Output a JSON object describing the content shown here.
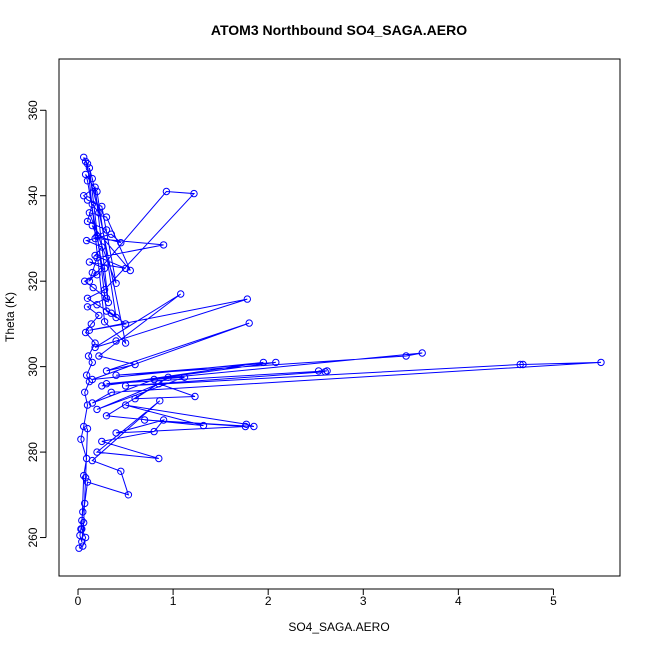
{
  "chart_data": {
    "type": "line",
    "title": "ATOM3 Northbound SO4_SAGA.AERO",
    "xlabel": "SO4_SAGA.AERO",
    "ylabel": "Theta (K)",
    "xlim": [
      -0.2,
      5.7
    ],
    "ylim": [
      251,
      372
    ],
    "x_ticks": [
      0,
      1,
      2,
      3,
      4,
      5
    ],
    "y_ticks": [
      260,
      280,
      300,
      320,
      340,
      360
    ],
    "x_tick_labels": [
      "0",
      "1",
      "2",
      "3",
      "4",
      "5"
    ],
    "y_tick_labels": [
      "260",
      "280",
      "300",
      "320",
      "340",
      "360"
    ],
    "marker": "open-circle",
    "grid": false,
    "legend": "none",
    "series_color": "#0000ff",
    "series": [
      {
        "x": [
          0.01,
          0.05,
          0.08,
          0.04,
          0.06,
          0.09,
          0.03,
          0.06,
          0.1,
          0.07,
          0.12,
          0.09,
          0.15,
          0.11,
          0.18,
          0.08,
          0.14,
          0.22,
          0.1,
          0.3,
          0.16,
          0.07,
          0.2,
          0.28,
          0.12,
          0.5,
          0.18,
          0.25,
          0.09,
          0.35,
          0.45,
          0.2,
          0.15,
          0.55,
          0.3,
          0.12,
          0.4,
          0.25,
          0.1,
          0.06,
          0.18,
          0.32,
          0.1,
          0.08,
          0.2,
          0.4,
          0.3,
          0.12,
          0.15,
          0.5,
          0.28,
          0.1,
          0.06,
          0.08,
          0.22,
          0.15,
          0.1,
          0.3,
          0.18,
          0.9,
          0.2,
          0.15,
          0.12,
          0.93,
          1.22,
          0.28,
          0.1,
          0.2,
          0.35,
          0.5,
          0.12,
          1.78,
          0.4,
          0.18,
          1.08,
          0.22,
          0.6,
          0.3,
          1.8,
          0.15,
          1.95,
          0.25,
          2.08,
          0.4,
          3.45,
          3.62,
          0.3,
          2.62,
          2.53,
          2.6,
          0.5,
          4.65,
          4.68,
          5.5,
          0.35,
          0.15,
          0.8,
          1.12,
          0.2,
          0.85,
          1.23,
          0.6,
          0.95,
          0.3,
          1.32,
          0.5,
          1.77,
          1.85,
          0.7,
          1.76,
          0.4,
          0.9,
          0.8,
          0.25,
          0.85,
          0.2,
          0.86,
          0.15,
          0.45,
          0.53,
          0.1,
          0.07,
          0.05,
          0.04,
          0.03,
          0.02,
          0.04,
          0.06,
          0.08,
          0.1
        ],
        "y": [
          257.5,
          258.0,
          260.0,
          262.0,
          274.5,
          278.5,
          283.0,
          286.0,
          291.0,
          294.0,
          296.5,
          298.0,
          301.0,
          302.5,
          305.5,
          308.0,
          310.0,
          312.0,
          314.0,
          316.0,
          318.5,
          320.0,
          321.5,
          323.0,
          324.5,
          323.0,
          326.0,
          328.0,
          329.5,
          331.0,
          329.0,
          330.5,
          333.0,
          322.5,
          335.0,
          336.0,
          319.5,
          337.5,
          339.0,
          340.0,
          342.0,
          315.0,
          343.5,
          345.0,
          341.0,
          311.5,
          313.0,
          346.5,
          344.0,
          305.5,
          310.5,
          347.5,
          349.0,
          348.0,
          336.0,
          338.0,
          334.0,
          332.0,
          330.0,
          328.5,
          325.5,
          322.0,
          320.0,
          341.0,
          340.5,
          318.0,
          316.0,
          314.5,
          312.5,
          310.0,
          308.5,
          315.8,
          306.0,
          304.5,
          317.0,
          302.5,
          300.5,
          299.0,
          310.2,
          297.0,
          301.0,
          295.5,
          301.0,
          298.0,
          302.5,
          303.2,
          296.0,
          299.0,
          299.0,
          298.8,
          295.5,
          300.5,
          300.5,
          301.0,
          294.0,
          291.5,
          297.0,
          297.5,
          290.0,
          296.0,
          293.0,
          292.5,
          297.5,
          288.5,
          286.2,
          291.0,
          286.5,
          286.0,
          287.5,
          286.0,
          284.5,
          287.5,
          284.8,
          282.5,
          278.5,
          280.0,
          292.0,
          278.0,
          275.5,
          270.0,
          273.0,
          268.0,
          266.0,
          264.0,
          262.0,
          260.5,
          259.0,
          263.5,
          274.0,
          285.5
        ]
      }
    ]
  }
}
